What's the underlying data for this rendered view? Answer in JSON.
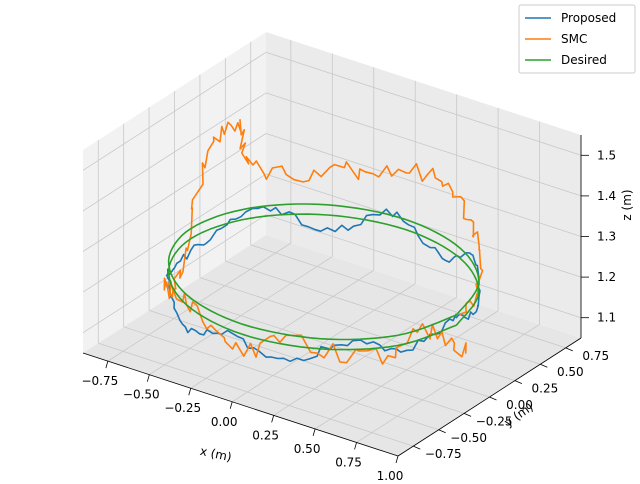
{
  "chart_data": {
    "type": "line",
    "projection": "3d",
    "title": "",
    "xlabel": "x (m)",
    "ylabel": "y (m)",
    "zlabel": "z (m)",
    "xlim": [
      -0.9,
      1.0
    ],
    "ylim": [
      -0.9,
      0.9
    ],
    "zlim": [
      1.05,
      1.55
    ],
    "xticks": [
      -0.75,
      -0.5,
      -0.25,
      0.0,
      0.25,
      0.5,
      0.75,
      1.0
    ],
    "xtick_labels": [
      "−0.75",
      "−0.50",
      "−0.25",
      "0.00",
      "0.25",
      "0.50",
      "0.75",
      "1.00"
    ],
    "yticks": [
      -0.75,
      -0.5,
      -0.25,
      0.0,
      0.25,
      0.5,
      0.75
    ],
    "ytick_labels": [
      "−0.75",
      "−0.50",
      "−0.25",
      "0.00",
      "0.25",
      "0.50",
      "0.75"
    ],
    "zticks": [
      1.1,
      1.2,
      1.3,
      1.4,
      1.5
    ],
    "ztick_labels": [
      "1.1",
      "1.2",
      "1.3",
      "1.4",
      "1.5"
    ],
    "grid": true,
    "legend_position": "top-right",
    "series": [
      {
        "name": "Proposed",
        "color": "#1f77b4",
        "description_of_shape": "noisy circle of radius ~0.8 tracking the desired path at z ~1.2",
        "points": [
          [
            0.8,
            0.0,
            1.22
          ],
          [
            0.73,
            0.33,
            1.18
          ],
          [
            0.54,
            0.59,
            1.24
          ],
          [
            0.25,
            0.76,
            1.17
          ],
          [
            -0.08,
            0.8,
            1.23
          ],
          [
            -0.4,
            0.69,
            1.16
          ],
          [
            -0.65,
            0.47,
            1.22
          ],
          [
            -0.78,
            0.17,
            1.18
          ],
          [
            -0.79,
            -0.17,
            1.16
          ],
          [
            -0.66,
            -0.46,
            1.19
          ],
          [
            -0.42,
            -0.68,
            1.14
          ],
          [
            -0.1,
            -0.79,
            1.19
          ],
          [
            0.23,
            -0.77,
            1.16
          ],
          [
            0.52,
            -0.61,
            1.22
          ],
          [
            0.72,
            -0.35,
            1.19
          ],
          [
            0.8,
            0.0,
            1.22
          ]
        ]
      },
      {
        "name": "SMC",
        "color": "#ff7f0e",
        "description_of_shape": "larger-deviation circle with a vertical excursion up to z ~1.45 near the far-left side",
        "points": [
          [
            0.8,
            0.05,
            1.2
          ],
          [
            0.72,
            0.36,
            1.27
          ],
          [
            0.5,
            0.62,
            1.31
          ],
          [
            0.2,
            0.78,
            1.35
          ],
          [
            -0.15,
            0.8,
            1.33
          ],
          [
            -0.45,
            0.66,
            1.3
          ],
          [
            -0.68,
            0.4,
            1.33
          ],
          [
            -0.7,
            0.3,
            1.44
          ],
          [
            -0.78,
            0.1,
            1.38
          ],
          [
            -0.8,
            -0.1,
            1.14
          ],
          [
            -0.67,
            -0.45,
            1.17
          ],
          [
            -0.4,
            -0.7,
            1.22
          ],
          [
            -0.05,
            -0.82,
            1.16
          ],
          [
            0.3,
            -0.76,
            1.22
          ],
          [
            0.6,
            -0.55,
            1.18
          ],
          [
            0.78,
            -0.25,
            1.22
          ],
          [
            0.82,
            0.05,
            1.13
          ]
        ]
      },
      {
        "name": "Desired",
        "color": "#2ca02c",
        "description_of_shape": "two nearly coincident circles of radius 0.8 at z ~1.20 and ~1.22",
        "points": [
          [
            0.8,
            0.0,
            1.2
          ],
          [
            0.69,
            0.4,
            1.2
          ],
          [
            0.4,
            0.69,
            1.2
          ],
          [
            0.0,
            0.8,
            1.2
          ],
          [
            -0.4,
            0.69,
            1.2
          ],
          [
            -0.69,
            0.4,
            1.2
          ],
          [
            -0.8,
            0.0,
            1.2
          ],
          [
            -0.69,
            -0.4,
            1.2
          ],
          [
            -0.4,
            -0.69,
            1.2
          ],
          [
            0.0,
            -0.8,
            1.2
          ],
          [
            0.4,
            -0.69,
            1.2
          ],
          [
            0.69,
            -0.4,
            1.2
          ],
          [
            0.8,
            0.0,
            1.2
          ]
        ]
      }
    ]
  }
}
